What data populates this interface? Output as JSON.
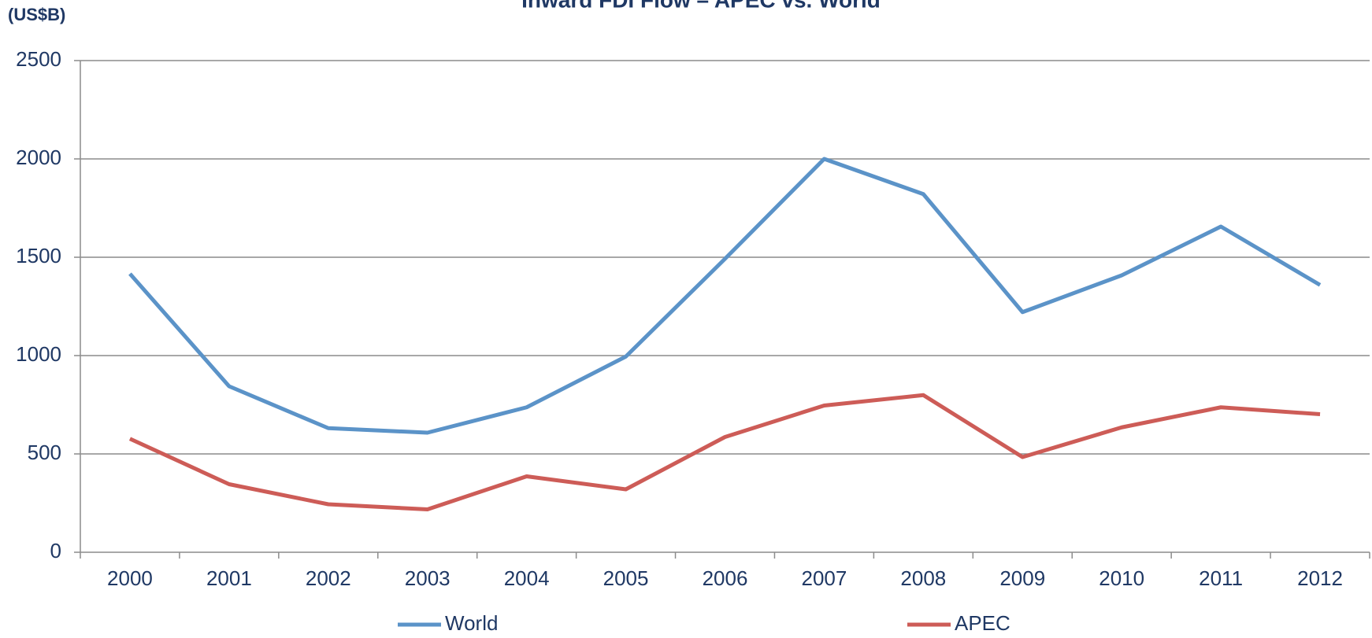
{
  "chart_data": {
    "type": "line",
    "title": "Inward FDI Flow – APEC vs. World",
    "y_label": "(US$B)",
    "categories": [
      "2000",
      "2001",
      "2002",
      "2003",
      "2004",
      "2005",
      "2006",
      "2007",
      "2008",
      "2009",
      "2010",
      "2011",
      "2012"
    ],
    "series": [
      {
        "name": "World",
        "color": "#5b93c8",
        "values": [
          1416,
          844,
          631,
          608,
          737,
          995,
          1492,
          2000,
          1821,
          1221,
          1408,
          1656,
          1359
        ]
      },
      {
        "name": "APEC",
        "color": "#cd5c57",
        "values": [
          577,
          346,
          244,
          218,
          386,
          320,
          586,
          746,
          799,
          484,
          635,
          737,
          702
        ]
      }
    ],
    "ylim": [
      0,
      2500
    ],
    "yticks": [
      0,
      500,
      1000,
      1500,
      2000,
      2500
    ],
    "grid": true,
    "legend": "bottom"
  }
}
